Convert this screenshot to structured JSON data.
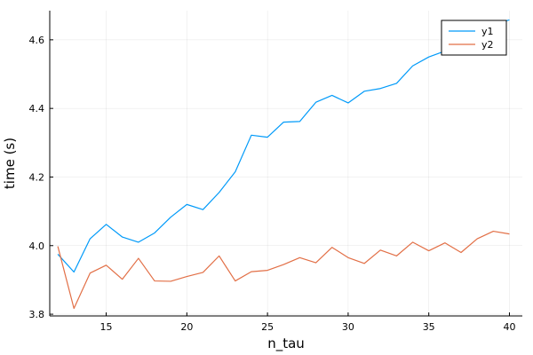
{
  "chart_data": {
    "type": "line",
    "xlabel": "n_tau",
    "ylabel": "time (s)",
    "xlim": [
      11.5,
      40.8
    ],
    "ylim": [
      3.795,
      4.685
    ],
    "xticks": [
      15,
      20,
      25,
      30,
      35,
      40
    ],
    "yticks": [
      3.8,
      4.0,
      4.2,
      4.4,
      4.6
    ],
    "xtick_labels": [
      "15",
      "20",
      "25",
      "30",
      "35",
      "40"
    ],
    "ytick_labels": [
      "3.8",
      "4.0",
      "4.2",
      "4.4",
      "4.6"
    ],
    "grid": true,
    "legend_position": "top-right",
    "x": [
      12,
      13,
      14,
      15,
      16,
      17,
      18,
      19,
      20,
      21,
      22,
      23,
      24,
      25,
      26,
      27,
      28,
      29,
      30,
      31,
      32,
      33,
      34,
      35,
      36,
      37,
      38,
      39,
      40
    ],
    "series": [
      {
        "name": "y1",
        "color": "#009af9",
        "values": [
          3.975,
          3.923,
          4.02,
          4.062,
          4.025,
          4.01,
          4.037,
          4.083,
          4.12,
          4.105,
          4.155,
          4.215,
          4.322,
          4.316,
          4.36,
          4.362,
          4.418,
          4.438,
          4.416,
          4.45,
          4.458,
          4.473,
          4.524,
          4.55,
          4.567,
          4.6,
          4.62,
          4.645,
          4.658
        ]
      },
      {
        "name": "y2",
        "color": "#e26f46",
        "values": [
          3.998,
          3.817,
          3.92,
          3.943,
          3.902,
          3.963,
          3.897,
          3.896,
          3.91,
          3.922,
          3.97,
          3.897,
          3.924,
          3.928,
          3.945,
          3.965,
          3.95,
          3.995,
          3.965,
          3.948,
          3.987,
          3.97,
          4.01,
          3.985,
          4.008,
          3.98,
          4.02,
          4.042,
          4.034
        ]
      }
    ]
  }
}
